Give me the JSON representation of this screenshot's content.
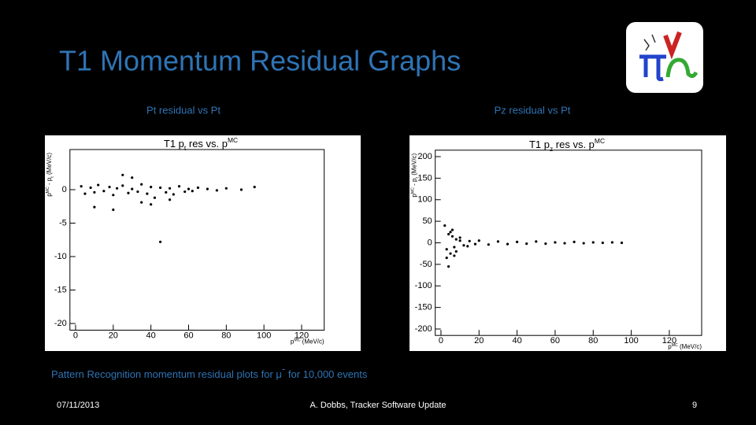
{
  "slide": {
    "title": "T1 Momentum Residual Graphs",
    "caption_parts": [
      "Pattern Recognition momentum residual plots for μ",
      "-",
      " for 10,000 events"
    ],
    "footer": {
      "date": "07/11/2013",
      "author": "A. Dobbs, Tracker Software Update",
      "page": "9"
    }
  },
  "chart_data": [
    {
      "type": "scatter",
      "subtitle": "Pt residual vs Pt",
      "title_parts": [
        "T1 p",
        "t",
        " res vs. p",
        "MC"
      ],
      "ylabel_parts": [
        "p",
        "MC",
        " - p",
        "t",
        " (MeV/c)"
      ],
      "xlabel_parts": [
        "p",
        "MC",
        " (MeV/c)"
      ],
      "color": "#000000",
      "xlim": [
        -3,
        132
      ],
      "xticks": [
        0,
        20,
        40,
        60,
        80,
        100,
        120
      ],
      "ylim": [
        -21,
        6
      ],
      "yticks": [
        0,
        -5,
        -10,
        -15,
        -20
      ],
      "x": [
        3,
        5,
        8,
        10,
        12,
        15,
        18,
        20,
        22,
        25,
        28,
        30,
        33,
        35,
        38,
        40,
        42,
        45,
        48,
        50,
        52,
        55,
        58,
        60,
        62,
        65,
        70,
        75,
        80,
        88,
        95,
        10,
        20,
        30,
        40,
        50,
        25,
        35,
        45
      ],
      "y": [
        0.5,
        -0.6,
        0.3,
        -0.4,
        0.7,
        -0.2,
        0.4,
        -0.8,
        0.2,
        0.6,
        -0.5,
        0.1,
        -0.3,
        0.8,
        -0.6,
        0.4,
        -1.2,
        0.3,
        -0.4,
        0.2,
        -0.7,
        0.5,
        -0.3,
        0.1,
        -0.2,
        0.3,
        0.1,
        -0.1,
        0.2,
        0.0,
        0.4,
        -2.6,
        -3.0,
        1.8,
        -2.2,
        -1.5,
        2.2,
        -1.9,
        -7.8
      ]
    },
    {
      "type": "scatter",
      "subtitle": "Pz residual vs Pt",
      "title_parts": [
        "T1 p",
        "z",
        " res vs. p",
        "MC"
      ],
      "ylabel_parts": [
        "p",
        "MC",
        " - p",
        "t",
        " (MeV/c)"
      ],
      "xlabel_parts": [
        "p",
        "MC",
        " (MeV/c)"
      ],
      "color": "#000000",
      "xlim": [
        -3,
        137
      ],
      "xticks": [
        0,
        20,
        40,
        60,
        80,
        100,
        120
      ],
      "ylim": [
        -215,
        215
      ],
      "yticks": [
        200,
        150,
        100,
        50,
        0,
        -50,
        -100,
        -150,
        -200
      ],
      "x": [
        2,
        3,
        4,
        5,
        6,
        7,
        8,
        10,
        12,
        15,
        18,
        20,
        25,
        30,
        35,
        40,
        45,
        50,
        55,
        60,
        65,
        70,
        75,
        80,
        85,
        90,
        95,
        4,
        6,
        3,
        8,
        5,
        7,
        10,
        14
      ],
      "y": [
        40,
        -35,
        20,
        -25,
        15,
        -10,
        8,
        5,
        -6,
        4,
        -3,
        5,
        -4,
        3,
        -3,
        2,
        -2,
        3,
        -2,
        1,
        -1,
        2,
        -1,
        1,
        0,
        1,
        0,
        -55,
        30,
        -15,
        -20,
        25,
        -30,
        12,
        -8
      ]
    }
  ]
}
